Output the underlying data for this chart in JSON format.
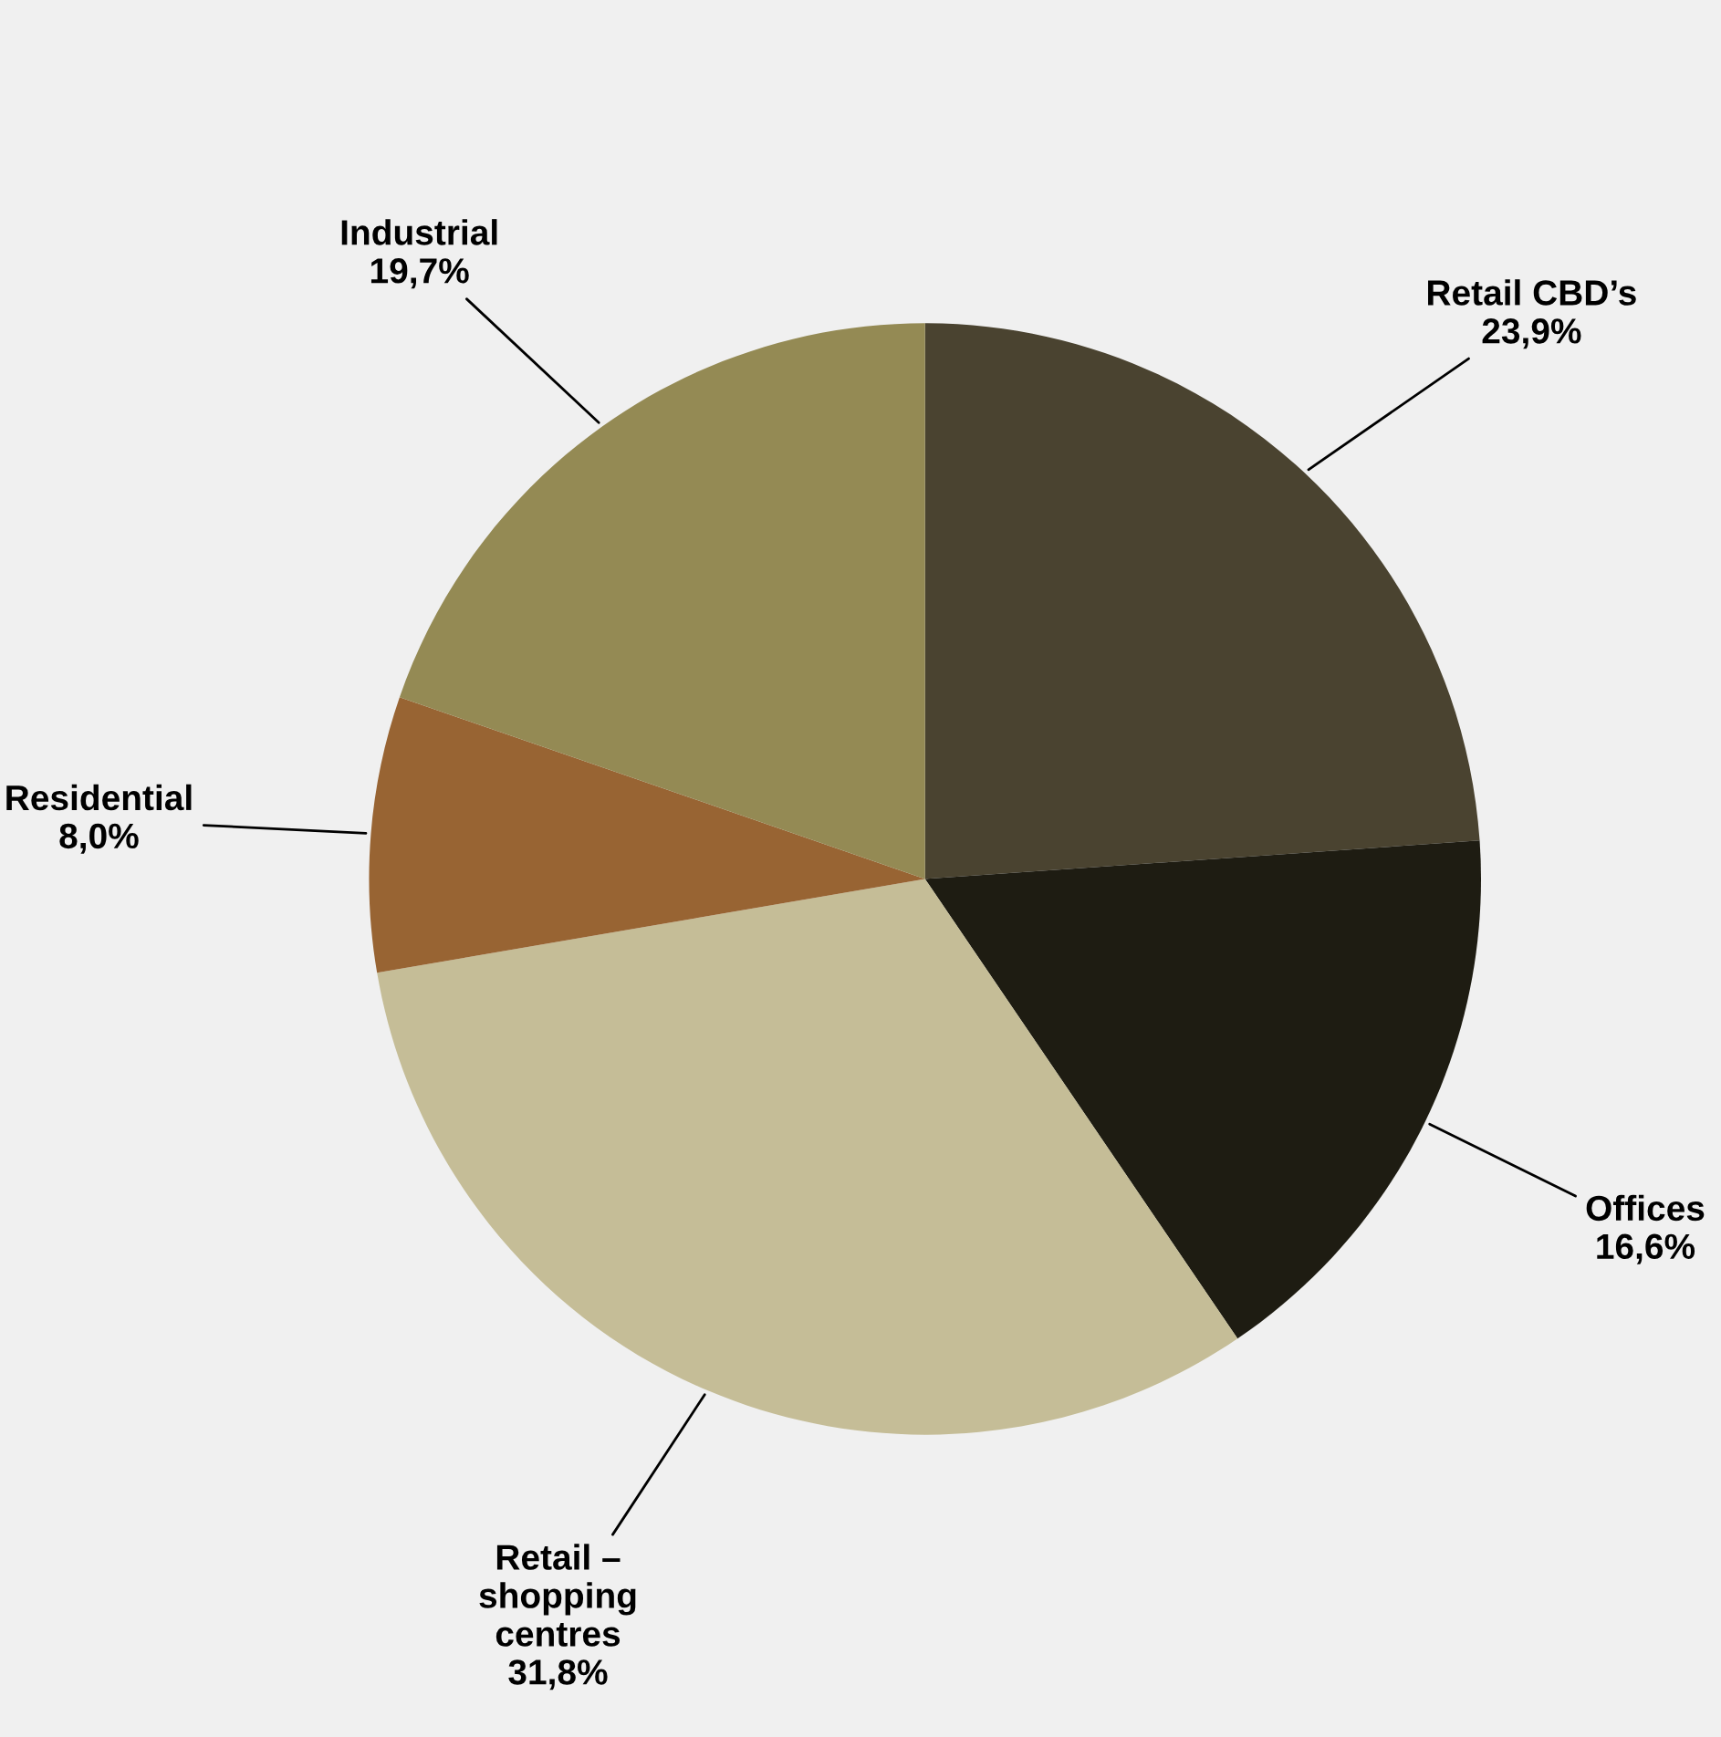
{
  "chart_data": {
    "type": "pie",
    "categories": [
      "Retail CBD’s",
      "Offices",
      "Retail – shopping centres",
      "Residential",
      "Industrial"
    ],
    "values": [
      23.9,
      16.6,
      31.8,
      8.0,
      19.7
    ],
    "value_labels": [
      "23,9%",
      "16,6%",
      "31,8%",
      "8,0%",
      "19,7%"
    ],
    "colors": [
      "#4a4330",
      "#1e1c12",
      "#c5bd97",
      "#986433",
      "#948a54"
    ],
    "legend": false
  }
}
